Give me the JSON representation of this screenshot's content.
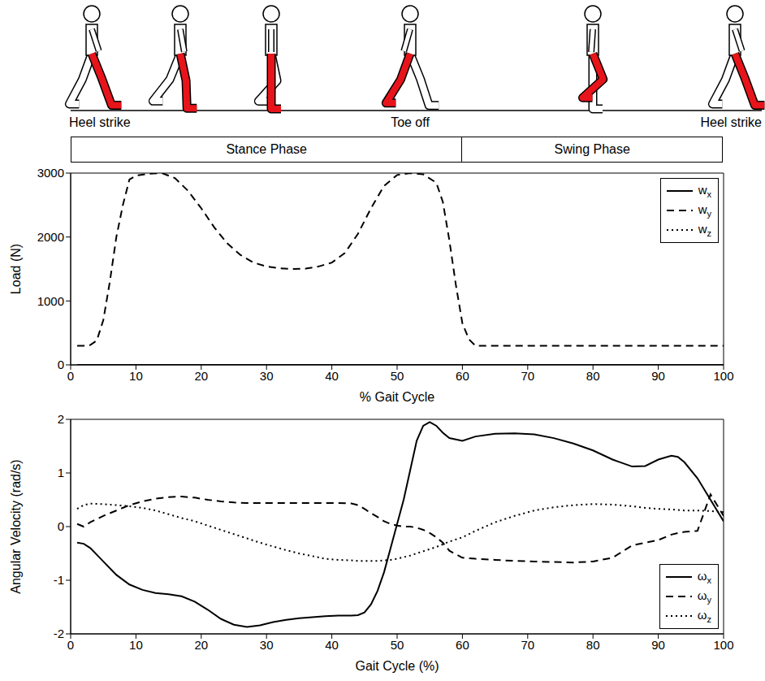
{
  "header": {
    "events": [
      "Heel strike",
      "Toe off",
      "Heel strike"
    ],
    "phases": [
      {
        "label": "Stance Phase",
        "start": 0,
        "end": 60
      },
      {
        "label": "Swing Phase",
        "start": 60,
        "end": 100
      }
    ]
  },
  "chart_data": [
    {
      "type": "line",
      "xlabel": "% Gait Cycle",
      "ylabel": "Load (N)",
      "xlim": [
        0,
        100
      ],
      "xticks": [
        0,
        10,
        20,
        30,
        40,
        50,
        60,
        70,
        80,
        90,
        100
      ],
      "ylim": [
        0,
        3000
      ],
      "yticks": [
        0,
        1000,
        2000,
        3000
      ],
      "legend": "top-right",
      "x": [
        1,
        2,
        3,
        4,
        5,
        6,
        7,
        8,
        9,
        10,
        12,
        14,
        16,
        18,
        20,
        22,
        24,
        26,
        28,
        30,
        32,
        34,
        36,
        38,
        40,
        42,
        44,
        46,
        48,
        50,
        52,
        54,
        56,
        57,
        58,
        59,
        60,
        61,
        62,
        65,
        70,
        75,
        80,
        85,
        90,
        95,
        100
      ],
      "series": [
        {
          "name": "wx",
          "color": "#000000",
          "line_style": "solid",
          "values": [
            0,
            0,
            0,
            0,
            0,
            0,
            0,
            0,
            0,
            0,
            0,
            0,
            0,
            0,
            0,
            0,
            0,
            0,
            0,
            0,
            0,
            0,
            0,
            0,
            0,
            0,
            0,
            0,
            0,
            0,
            0,
            0,
            0,
            0,
            0,
            0,
            0,
            0,
            0,
            0,
            0,
            0,
            0,
            0,
            0,
            0,
            0
          ]
        },
        {
          "name": "wy",
          "color": "#000000",
          "line_style": "dashed",
          "values": [
            300,
            300,
            310,
            380,
            700,
            1300,
            2000,
            2500,
            2900,
            2960,
            2990,
            3000,
            2920,
            2720,
            2450,
            2150,
            1900,
            1720,
            1600,
            1540,
            1510,
            1500,
            1505,
            1540,
            1600,
            1750,
            2050,
            2450,
            2800,
            2970,
            3000,
            2980,
            2850,
            2550,
            1950,
            1250,
            650,
            400,
            300,
            300,
            300,
            300,
            300,
            300,
            300,
            300,
            300
          ]
        },
        {
          "name": "wz",
          "color": "#000000",
          "line_style": "dotted",
          "values": [
            0,
            0,
            0,
            0,
            0,
            0,
            0,
            0,
            0,
            0,
            0,
            0,
            0,
            0,
            0,
            0,
            0,
            0,
            0,
            0,
            0,
            0,
            0,
            0,
            0,
            0,
            0,
            0,
            0,
            0,
            0,
            0,
            0,
            0,
            0,
            0,
            0,
            0,
            0,
            0,
            0,
            0,
            0,
            0,
            0,
            0,
            0
          ]
        }
      ]
    },
    {
      "type": "line",
      "xlabel": "Gait Cycle (%)",
      "ylabel": "Angular Velocity (rad/s)",
      "xlim": [
        0,
        100
      ],
      "xticks": [
        0,
        10,
        20,
        30,
        40,
        50,
        60,
        70,
        80,
        90,
        100
      ],
      "ylim": [
        -2,
        2
      ],
      "yticks": [
        -2,
        -1,
        0,
        1,
        2
      ],
      "legend": "bottom-right",
      "x": [
        1,
        2,
        3,
        5,
        7,
        9,
        11,
        13,
        15,
        17,
        19,
        21,
        23,
        25,
        27,
        29,
        31,
        33,
        35,
        37,
        39,
        41,
        43,
        44,
        45,
        46,
        47,
        48,
        49,
        50,
        51,
        52,
        53,
        54,
        55,
        56,
        57,
        58,
        60,
        62,
        65,
        68,
        71,
        74,
        77,
        80,
        83,
        86,
        88,
        90,
        92,
        93,
        94,
        96,
        98,
        100
      ],
      "series": [
        {
          "name": "ωx",
          "color": "#000000",
          "line_style": "solid",
          "values": [
            -0.3,
            -0.32,
            -0.4,
            -0.65,
            -0.9,
            -1.08,
            -1.18,
            -1.24,
            -1.26,
            -1.3,
            -1.4,
            -1.55,
            -1.72,
            -1.83,
            -1.87,
            -1.84,
            -1.78,
            -1.74,
            -1.71,
            -1.69,
            -1.67,
            -1.66,
            -1.66,
            -1.65,
            -1.6,
            -1.45,
            -1.2,
            -0.85,
            -0.4,
            0.05,
            0.5,
            1.05,
            1.6,
            1.88,
            1.95,
            1.88,
            1.75,
            1.65,
            1.6,
            1.68,
            1.73,
            1.74,
            1.72,
            1.65,
            1.55,
            1.42,
            1.25,
            1.12,
            1.13,
            1.25,
            1.32,
            1.3,
            1.2,
            0.9,
            0.5,
            0.1
          ]
        },
        {
          "name": "ωy",
          "color": "#000000",
          "line_style": "dashed",
          "values": [
            0.05,
            0.0,
            0.08,
            0.2,
            0.3,
            0.4,
            0.47,
            0.52,
            0.55,
            0.56,
            0.54,
            0.5,
            0.47,
            0.45,
            0.44,
            0.44,
            0.44,
            0.44,
            0.44,
            0.44,
            0.44,
            0.44,
            0.43,
            0.4,
            0.33,
            0.25,
            0.18,
            0.1,
            0.05,
            0.02,
            0.0,
            0.0,
            -0.02,
            -0.06,
            -0.12,
            -0.2,
            -0.3,
            -0.45,
            -0.58,
            -0.6,
            -0.62,
            -0.64,
            -0.65,
            -0.66,
            -0.67,
            -0.65,
            -0.58,
            -0.35,
            -0.3,
            -0.25,
            -0.15,
            -0.12,
            -0.1,
            -0.08,
            0.6,
            0.2
          ]
        },
        {
          "name": "ωz",
          "color": "#000000",
          "line_style": "dotted",
          "values": [
            0.33,
            0.4,
            0.43,
            0.42,
            0.4,
            0.38,
            0.35,
            0.3,
            0.23,
            0.16,
            0.1,
            0.02,
            -0.06,
            -0.14,
            -0.22,
            -0.3,
            -0.37,
            -0.44,
            -0.5,
            -0.55,
            -0.6,
            -0.62,
            -0.63,
            -0.64,
            -0.64,
            -0.64,
            -0.64,
            -0.63,
            -0.62,
            -0.6,
            -0.57,
            -0.54,
            -0.5,
            -0.46,
            -0.42,
            -0.38,
            -0.33,
            -0.28,
            -0.2,
            -0.08,
            0.08,
            0.2,
            0.3,
            0.36,
            0.4,
            0.42,
            0.41,
            0.38,
            0.35,
            0.33,
            0.32,
            0.31,
            0.3,
            0.3,
            0.29,
            0.27
          ]
        }
      ]
    }
  ]
}
